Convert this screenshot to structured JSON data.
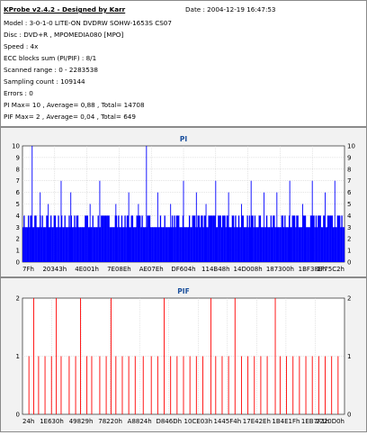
{
  "info": {
    "title": "KProbe v2.4.2 - Designed by Karr",
    "date": "Date : 2004-12-19 16:47:53",
    "lines": [
      "Model : 3-0-1-0 LITE-ON DVDRW SOHW-1653S CS07",
      "Disc : DVD+R , MPOMEDIA080 [MPO]",
      "Speed : 4x",
      "ECC blocks sum (PI/PIF) : 8/1",
      "Scanned range : 0 - 2283538",
      "Sampling count : 109144",
      "Errors : 0",
      "PI Max= 10 , Average= 0,88 , Total= 14708",
      "PIF Max= 2 , Average= 0,04 , Total= 649"
    ]
  },
  "chart_data": [
    {
      "type": "bar",
      "title": "PI",
      "ylim": [
        0,
        10
      ],
      "y_ticks": [
        0,
        1,
        2,
        3,
        4,
        5,
        6,
        7,
        8,
        9,
        10
      ],
      "x_tick_labels": [
        "7Fh",
        "20343h",
        "4E001h",
        "7E08Eh",
        "AE07Eh",
        "DF604h",
        "114B48h",
        "14D008h",
        "187300h",
        "1BF38Eh",
        "1F75C2h"
      ],
      "grid": true,
      "bar_color": "#0000ff",
      "baseline_level": 3,
      "spikes": [
        {
          "pos": 0.03,
          "value": 10
        },
        {
          "pos": 0.055,
          "value": 6
        },
        {
          "pos": 0.08,
          "value": 5
        },
        {
          "pos": 0.12,
          "value": 7
        },
        {
          "pos": 0.15,
          "value": 6
        },
        {
          "pos": 0.21,
          "value": 5
        },
        {
          "pos": 0.24,
          "value": 7
        },
        {
          "pos": 0.29,
          "value": 5
        },
        {
          "pos": 0.33,
          "value": 6
        },
        {
          "pos": 0.36,
          "value": 5
        },
        {
          "pos": 0.385,
          "value": 10
        },
        {
          "pos": 0.42,
          "value": 6
        },
        {
          "pos": 0.46,
          "value": 5
        },
        {
          "pos": 0.5,
          "value": 7
        },
        {
          "pos": 0.54,
          "value": 6
        },
        {
          "pos": 0.57,
          "value": 5
        },
        {
          "pos": 0.6,
          "value": 7
        },
        {
          "pos": 0.64,
          "value": 6
        },
        {
          "pos": 0.68,
          "value": 5
        },
        {
          "pos": 0.71,
          "value": 7
        },
        {
          "pos": 0.75,
          "value": 6
        },
        {
          "pos": 0.79,
          "value": 6
        },
        {
          "pos": 0.83,
          "value": 7
        },
        {
          "pos": 0.87,
          "value": 5
        },
        {
          "pos": 0.9,
          "value": 7
        },
        {
          "pos": 0.94,
          "value": 6
        },
        {
          "pos": 0.97,
          "value": 7
        }
      ]
    },
    {
      "type": "bar",
      "title": "PIF",
      "ylim": [
        0,
        2
      ],
      "y_ticks": [
        0,
        1,
        2
      ],
      "x_tick_labels": [
        "24h",
        "1E630h",
        "49829h",
        "78220h",
        "A8824h",
        "D846Dh",
        "10CE03h",
        "1445F4h",
        "17E42Eh",
        "1B4E1Fh",
        "1EB7F1h",
        "2220D0h"
      ],
      "grid": true,
      "bar_color": "#ff0000",
      "spikes": [
        {
          "pos": 0.02,
          "value": 1
        },
        {
          "pos": 0.035,
          "value": 2
        },
        {
          "pos": 0.05,
          "value": 1
        },
        {
          "pos": 0.07,
          "value": 1
        },
        {
          "pos": 0.09,
          "value": 1
        },
        {
          "pos": 0.105,
          "value": 2
        },
        {
          "pos": 0.12,
          "value": 1
        },
        {
          "pos": 0.145,
          "value": 1
        },
        {
          "pos": 0.165,
          "value": 1
        },
        {
          "pos": 0.18,
          "value": 2
        },
        {
          "pos": 0.2,
          "value": 1
        },
        {
          "pos": 0.215,
          "value": 1
        },
        {
          "pos": 0.24,
          "value": 1
        },
        {
          "pos": 0.26,
          "value": 1
        },
        {
          "pos": 0.275,
          "value": 2
        },
        {
          "pos": 0.29,
          "value": 1
        },
        {
          "pos": 0.31,
          "value": 1
        },
        {
          "pos": 0.33,
          "value": 1
        },
        {
          "pos": 0.35,
          "value": 1
        },
        {
          "pos": 0.375,
          "value": 1
        },
        {
          "pos": 0.4,
          "value": 1
        },
        {
          "pos": 0.42,
          "value": 1
        },
        {
          "pos": 0.44,
          "value": 2
        },
        {
          "pos": 0.46,
          "value": 1
        },
        {
          "pos": 0.48,
          "value": 1
        },
        {
          "pos": 0.5,
          "value": 1
        },
        {
          "pos": 0.52,
          "value": 1
        },
        {
          "pos": 0.54,
          "value": 1
        },
        {
          "pos": 0.56,
          "value": 1
        },
        {
          "pos": 0.585,
          "value": 2
        },
        {
          "pos": 0.6,
          "value": 1
        },
        {
          "pos": 0.62,
          "value": 1
        },
        {
          "pos": 0.64,
          "value": 1
        },
        {
          "pos": 0.66,
          "value": 2
        },
        {
          "pos": 0.68,
          "value": 1
        },
        {
          "pos": 0.7,
          "value": 1
        },
        {
          "pos": 0.72,
          "value": 1
        },
        {
          "pos": 0.74,
          "value": 1
        },
        {
          "pos": 0.76,
          "value": 1
        },
        {
          "pos": 0.785,
          "value": 2
        },
        {
          "pos": 0.8,
          "value": 1
        },
        {
          "pos": 0.82,
          "value": 1
        },
        {
          "pos": 0.84,
          "value": 1
        },
        {
          "pos": 0.86,
          "value": 1
        },
        {
          "pos": 0.88,
          "value": 1
        },
        {
          "pos": 0.9,
          "value": 1
        },
        {
          "pos": 0.92,
          "value": 1
        },
        {
          "pos": 0.94,
          "value": 1
        },
        {
          "pos": 0.96,
          "value": 1
        },
        {
          "pos": 0.98,
          "value": 1
        }
      ]
    }
  ]
}
